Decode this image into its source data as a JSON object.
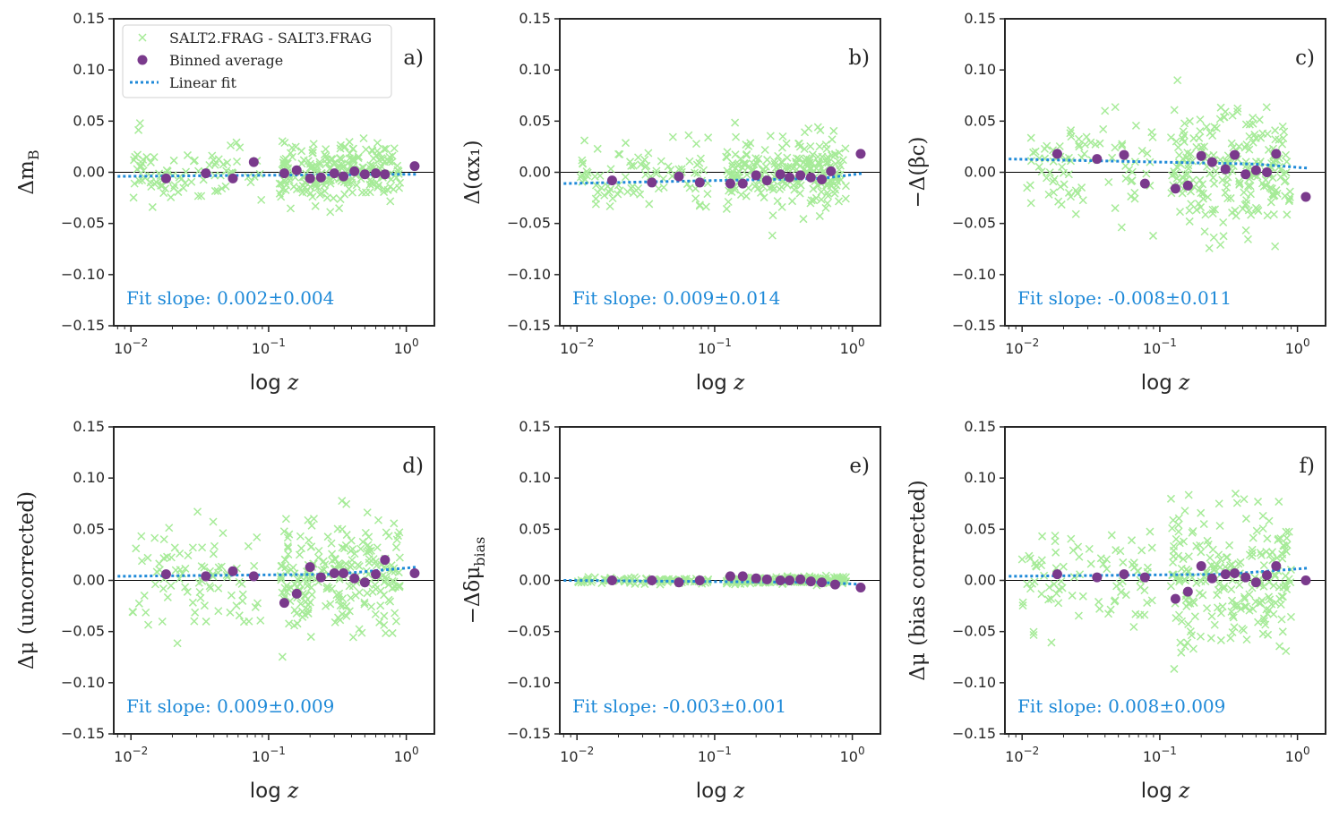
{
  "chart_data": {
    "type": "scatter",
    "layout": "2x3 panel grid",
    "shared": {
      "xlabel_var": "z",
      "xlabel_prefix": "log",
      "xscale": "log",
      "xlim": [
        0.0075,
        1.6
      ],
      "ylim": [
        -0.15,
        0.15
      ],
      "y_tick_labels": [
        "0.15",
        "0.10",
        "0.05",
        "0.00",
        "−0.05",
        "−0.10",
        "−0.15"
      ],
      "y_tick_values": [
        0.15,
        0.1,
        0.05,
        0.0,
        -0.05,
        -0.1,
        -0.15
      ],
      "x_ticks": [
        {
          "base": "10",
          "exp": "−2",
          "value": 0.01
        },
        {
          "base": "10",
          "exp": "−1",
          "value": 0.1
        },
        {
          "base": "10",
          "exp": "0",
          "value": 1.0
        }
      ],
      "zero_line": true
    },
    "colors": {
      "scatter": "#a6eb98",
      "binned": "#7a3a8c",
      "fit": "#1f8ad8"
    },
    "legend": {
      "placement": "upper-left of panel a",
      "entries": [
        "SALT2.FRAG - SALT3.FRAG",
        "Binned average",
        "Linear fit"
      ]
    },
    "panels": [
      {
        "tag": "a)",
        "ylabel": "Δm_B",
        "fit_label": "Fit slope: 0.002±0.004",
        "fit_line": {
          "z_start": 0.008,
          "z_end": 1.2,
          "y_start": -0.004,
          "y_end": -0.002,
          "z_taper": 0.7,
          "y_taper": -0.002
        },
        "binned": {
          "z": [
            0.018,
            0.035,
            0.055,
            0.078,
            0.13,
            0.16,
            0.2,
            0.24,
            0.3,
            0.35,
            0.42,
            0.5,
            0.6,
            0.7,
            1.15
          ],
          "y": [
            -0.006,
            -0.001,
            -0.006,
            0.01,
            -0.001,
            0.002,
            -0.006,
            -0.005,
            -0.001,
            -0.004,
            0.001,
            -0.002,
            -0.001,
            -0.002,
            0.006
          ]
        },
        "scatter_seed": 11,
        "scatter_spread": 0.018
      },
      {
        "tag": "b)",
        "ylabel": "Δ(αx₁)",
        "fit_label": "Fit slope: 0.009±0.014",
        "fit_line": {
          "z_start": 0.008,
          "z_end": 1.2,
          "y_start": -0.011,
          "y_end": -0.001,
          "z_taper": 0.6,
          "y_taper": -0.006
        },
        "binned": {
          "z": [
            0.018,
            0.035,
            0.055,
            0.078,
            0.13,
            0.16,
            0.2,
            0.24,
            0.3,
            0.35,
            0.42,
            0.5,
            0.6,
            0.7,
            1.15
          ],
          "y": [
            -0.008,
            -0.01,
            -0.004,
            -0.01,
            -0.011,
            -0.011,
            -0.003,
            -0.008,
            -0.002,
            -0.005,
            -0.003,
            -0.005,
            -0.007,
            0.001,
            0.018
          ]
        },
        "scatter_seed": 23,
        "scatter_spread": 0.02
      },
      {
        "tag": "c)",
        "ylabel": "−Δ(βc)",
        "fit_label": "Fit slope: -0.008±0.011",
        "fit_line": {
          "z_start": 0.008,
          "z_end": 1.2,
          "y_start": 0.013,
          "y_end": 0.004,
          "z_taper": 0.5,
          "y_taper": 0.008
        },
        "binned": {
          "z": [
            0.018,
            0.035,
            0.055,
            0.078,
            0.13,
            0.16,
            0.2,
            0.24,
            0.3,
            0.35,
            0.42,
            0.5,
            0.6,
            0.7,
            1.15
          ],
          "y": [
            0.018,
            0.013,
            0.017,
            -0.011,
            -0.016,
            -0.013,
            0.016,
            0.01,
            0.003,
            0.017,
            -0.002,
            0.002,
            0.0,
            0.018,
            -0.024
          ]
        },
        "scatter_seed": 37,
        "scatter_spread": 0.035
      },
      {
        "tag": "d)",
        "ylabel": "Δμ (uncorrected)",
        "fit_label": "Fit slope: 0.009±0.009",
        "fit_line": {
          "z_start": 0.008,
          "z_end": 1.2,
          "y_start": 0.004,
          "y_end": 0.013,
          "z_taper": 0.3,
          "y_taper": 0.006
        },
        "binned": {
          "z": [
            0.018,
            0.035,
            0.055,
            0.078,
            0.13,
            0.16,
            0.2,
            0.24,
            0.3,
            0.35,
            0.42,
            0.5,
            0.6,
            0.7,
            1.15
          ],
          "y": [
            0.006,
            0.004,
            0.009,
            0.004,
            -0.022,
            -0.013,
            0.013,
            0.003,
            0.007,
            0.007,
            0.002,
            -0.002,
            0.006,
            0.02,
            0.007
          ]
        },
        "scatter_seed": 41,
        "scatter_spread": 0.035
      },
      {
        "tag": "e)",
        "ylabel": "−Δδμ_bias",
        "fit_label": "Fit slope: -0.003±0.001",
        "fit_line": {
          "z_start": 0.008,
          "z_end": 1.2,
          "y_start": 0.0,
          "y_end": -0.004,
          "z_taper": 0.6,
          "y_taper": -0.002
        },
        "binned": {
          "z": [
            0.018,
            0.035,
            0.055,
            0.078,
            0.13,
            0.16,
            0.2,
            0.24,
            0.3,
            0.35,
            0.42,
            0.5,
            0.6,
            0.75,
            1.15
          ],
          "y": [
            0.0,
            0.0,
            -0.002,
            0.0,
            0.004,
            0.004,
            0.002,
            0.001,
            0.0,
            0.0,
            0.001,
            -0.001,
            -0.002,
            -0.004,
            -0.007
          ]
        },
        "scatter_seed": 53,
        "scatter_spread": 0.002
      },
      {
        "tag": "f)",
        "ylabel": "Δμ (bias corrected)",
        "fit_label": "Fit slope: 0.008±0.009",
        "fit_line": {
          "z_start": 0.008,
          "z_end": 1.2,
          "y_start": 0.004,
          "y_end": 0.012,
          "z_taper": 0.3,
          "y_taper": 0.006
        },
        "binned": {
          "z": [
            0.018,
            0.035,
            0.055,
            0.078,
            0.13,
            0.16,
            0.2,
            0.24,
            0.3,
            0.35,
            0.42,
            0.5,
            0.6,
            0.7,
            1.15
          ],
          "y": [
            0.006,
            0.003,
            0.006,
            0.003,
            -0.018,
            -0.011,
            0.014,
            0.002,
            0.006,
            0.007,
            0.003,
            -0.002,
            0.005,
            0.014,
            0.0
          ]
        },
        "scatter_seed": 67,
        "scatter_spread": 0.035
      }
    ]
  }
}
